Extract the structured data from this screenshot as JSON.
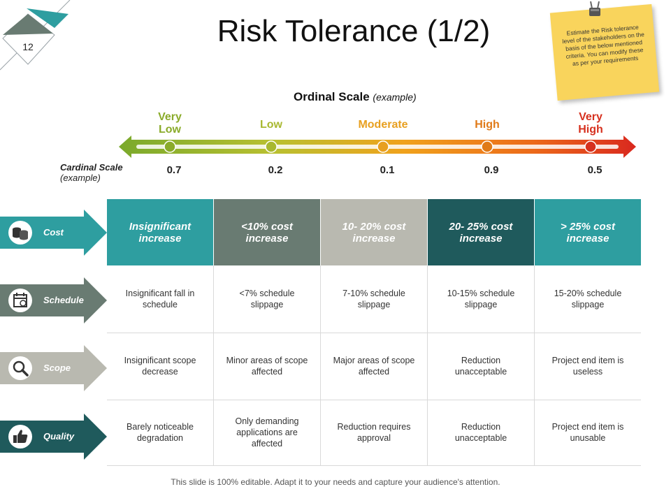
{
  "page_number": "12",
  "title": "Risk Tolerance (1/2)",
  "note": "Estimate the Risk tolerance level of the stakeholders on the basis of the below mentioned criteria. You can modify these as per your requirements",
  "ordinal_scale": {
    "label": "Ordinal Scale",
    "sub": "(example)"
  },
  "cardinal_scale": {
    "label": "Cardinal Scale",
    "sub": "(example)"
  },
  "levels": [
    {
      "label": "Very Low",
      "value": "0.7",
      "color": "#8aab2a"
    },
    {
      "label": "Low",
      "value": "0.2",
      "color": "#a8b830"
    },
    {
      "label": "Moderate",
      "value": "0.1",
      "color": "#e8a020"
    },
    {
      "label": "High",
      "value": "0.9",
      "color": "#e07a18"
    },
    {
      "label": "Very High",
      "value": "0.5",
      "color": "#d6301e"
    }
  ],
  "categories": [
    {
      "name": "Cost",
      "icon": "coins-icon",
      "color": "#2e9ea0"
    },
    {
      "name": "Schedule",
      "icon": "calendar-icon",
      "color": "#697b72"
    },
    {
      "name": "Scope",
      "icon": "magnifier-icon",
      "color": "#b9b9b0"
    },
    {
      "name": "Quality",
      "icon": "thumbs-up-icon",
      "color": "#1f5a5c"
    }
  ],
  "header_colors": [
    "#2e9ea0",
    "#697b72",
    "#b9b9b0",
    "#1f5a5c",
    "#2e9ea0"
  ],
  "table": {
    "cost": [
      "Insignificant increase",
      "<10% cost increase",
      "10- 20% cost increase",
      "20- 25% cost increase",
      "> 25% cost increase"
    ],
    "schedule": [
      "Insignificant fall in schedule",
      "<7% schedule slippage",
      "7-10% schedule slippage",
      "10-15% schedule slippage",
      "15-20% schedule slippage"
    ],
    "scope": [
      "Insignificant scope decrease",
      "Minor areas of scope affected",
      "Major areas of scope affected",
      "Reduction unacceptable",
      "Project end item is useless"
    ],
    "quality": [
      "Barely noticeable degradation",
      "Only demanding applications are affected",
      "Reduction requires approval",
      "Reduction unacceptable",
      "Project end item is unusable"
    ]
  },
  "footer": "This slide is 100% editable. Adapt it to your needs and capture your audience's attention."
}
